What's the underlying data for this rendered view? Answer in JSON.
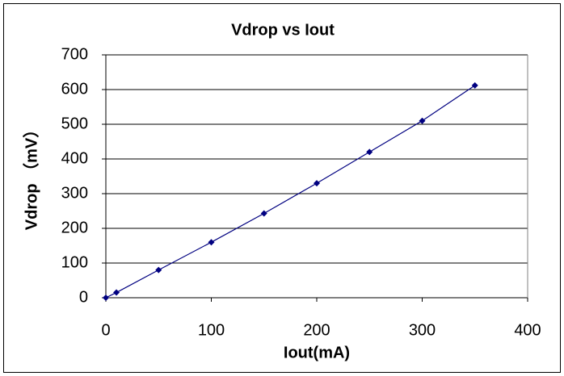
{
  "chart_data": {
    "type": "line",
    "title": "Vdrop vs Iout",
    "xlabel": "Iout(mA)",
    "ylabel": "Vdrop （mV）",
    "x": [
      0,
      10,
      50,
      100,
      150,
      200,
      250,
      300,
      350
    ],
    "values": [
      0,
      15,
      80,
      160,
      243,
      330,
      420,
      510,
      612
    ],
    "color": "#000080",
    "xlim": [
      0,
      400
    ],
    "xticks": [
      0,
      100,
      200,
      300,
      400
    ],
    "ylim": [
      0,
      700
    ],
    "yticks": [
      0,
      100,
      200,
      300,
      400,
      500,
      600,
      700
    ],
    "grid": true,
    "markers": true
  }
}
